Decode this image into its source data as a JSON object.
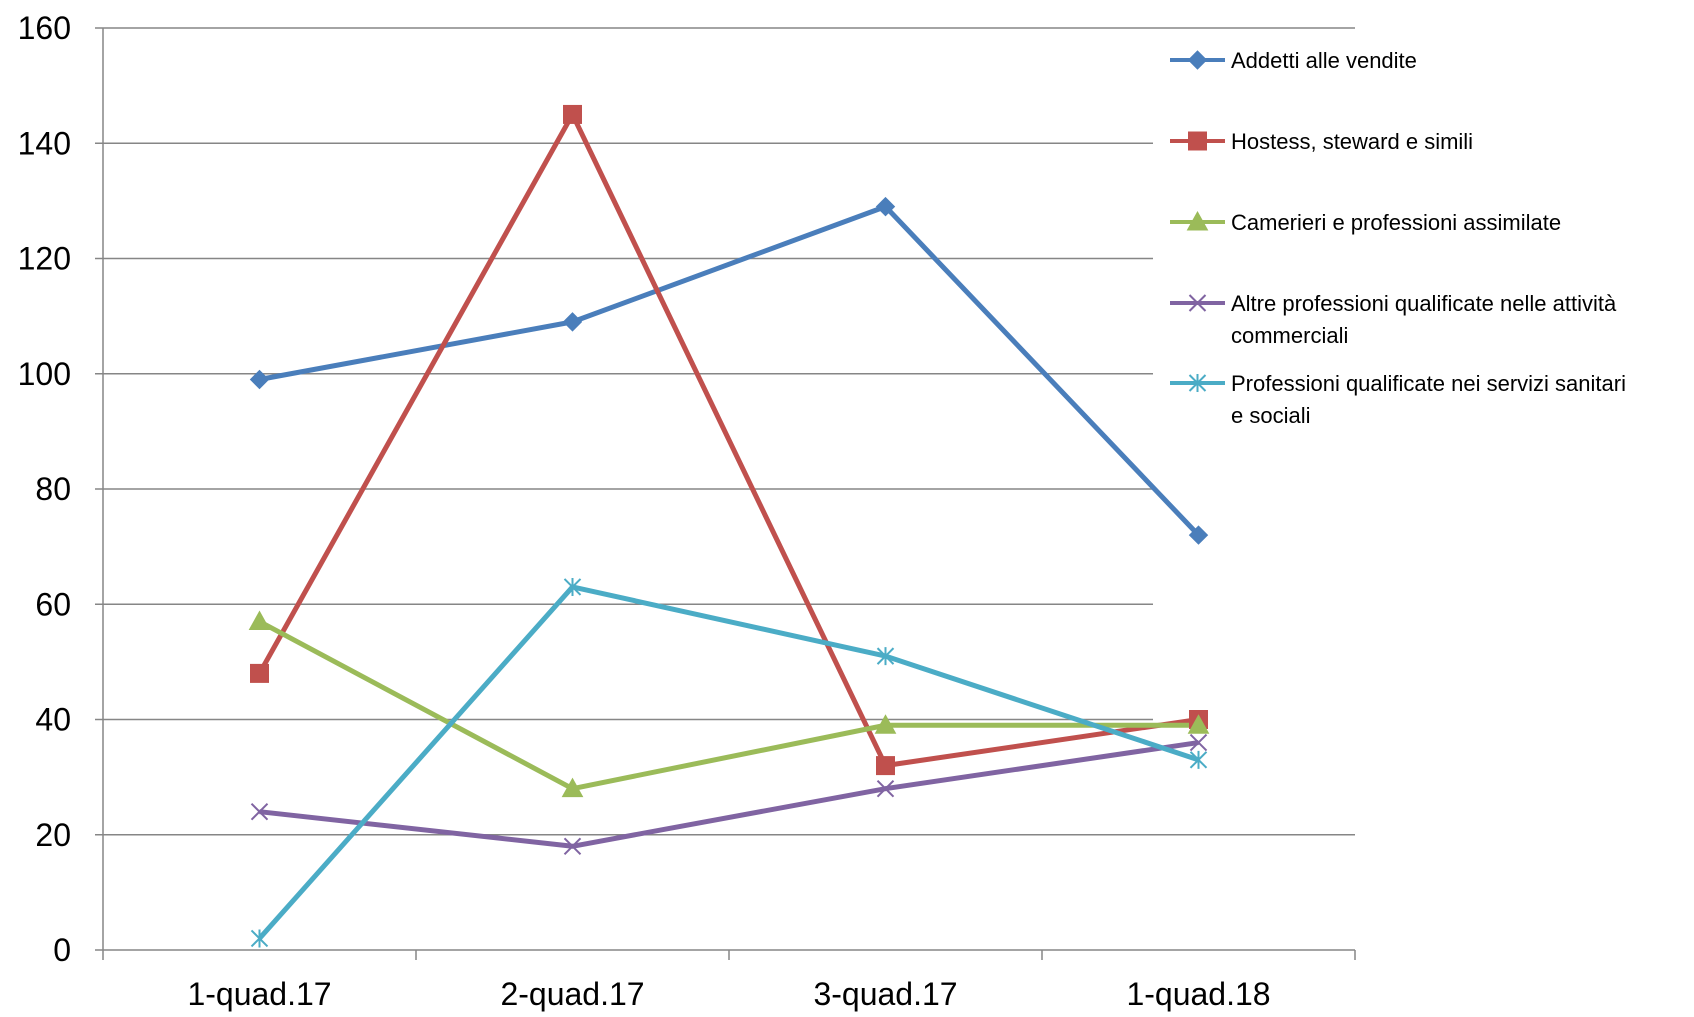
{
  "chart_data": {
    "type": "line",
    "title": "",
    "xlabel": "",
    "ylabel": "",
    "categories": [
      "1-quad.17",
      "2-quad.17",
      "3-quad.17",
      "1-quad.18"
    ],
    "ylim": [
      0,
      160
    ],
    "yticks": [
      "0",
      "20",
      "40",
      "60",
      "80",
      "100",
      "120",
      "140",
      "160"
    ],
    "grid": true,
    "legend_position": "right",
    "series": [
      {
        "name": "Addetti alle vendite",
        "values": [
          99,
          109,
          129,
          72
        ],
        "color": "#4a7ebb",
        "marker": "diamond"
      },
      {
        "name": "Hostess, steward e simili",
        "values": [
          48,
          145,
          32,
          40
        ],
        "color": "#c0504d",
        "marker": "square"
      },
      {
        "name": "Camerieri e professioni assimilate",
        "values": [
          57,
          28,
          39,
          39
        ],
        "color": "#9bbb59",
        "marker": "triangle"
      },
      {
        "name": "Altre professioni qualificate nelle attività commerciali",
        "values": [
          24,
          18,
          28,
          36
        ],
        "color": "#8064a2",
        "marker": "x"
      },
      {
        "name": "Professioni qualificate nei servizi sanitari e sociali",
        "values": [
          2,
          63,
          51,
          33
        ],
        "color": "#4bacc6",
        "marker": "star"
      }
    ]
  }
}
